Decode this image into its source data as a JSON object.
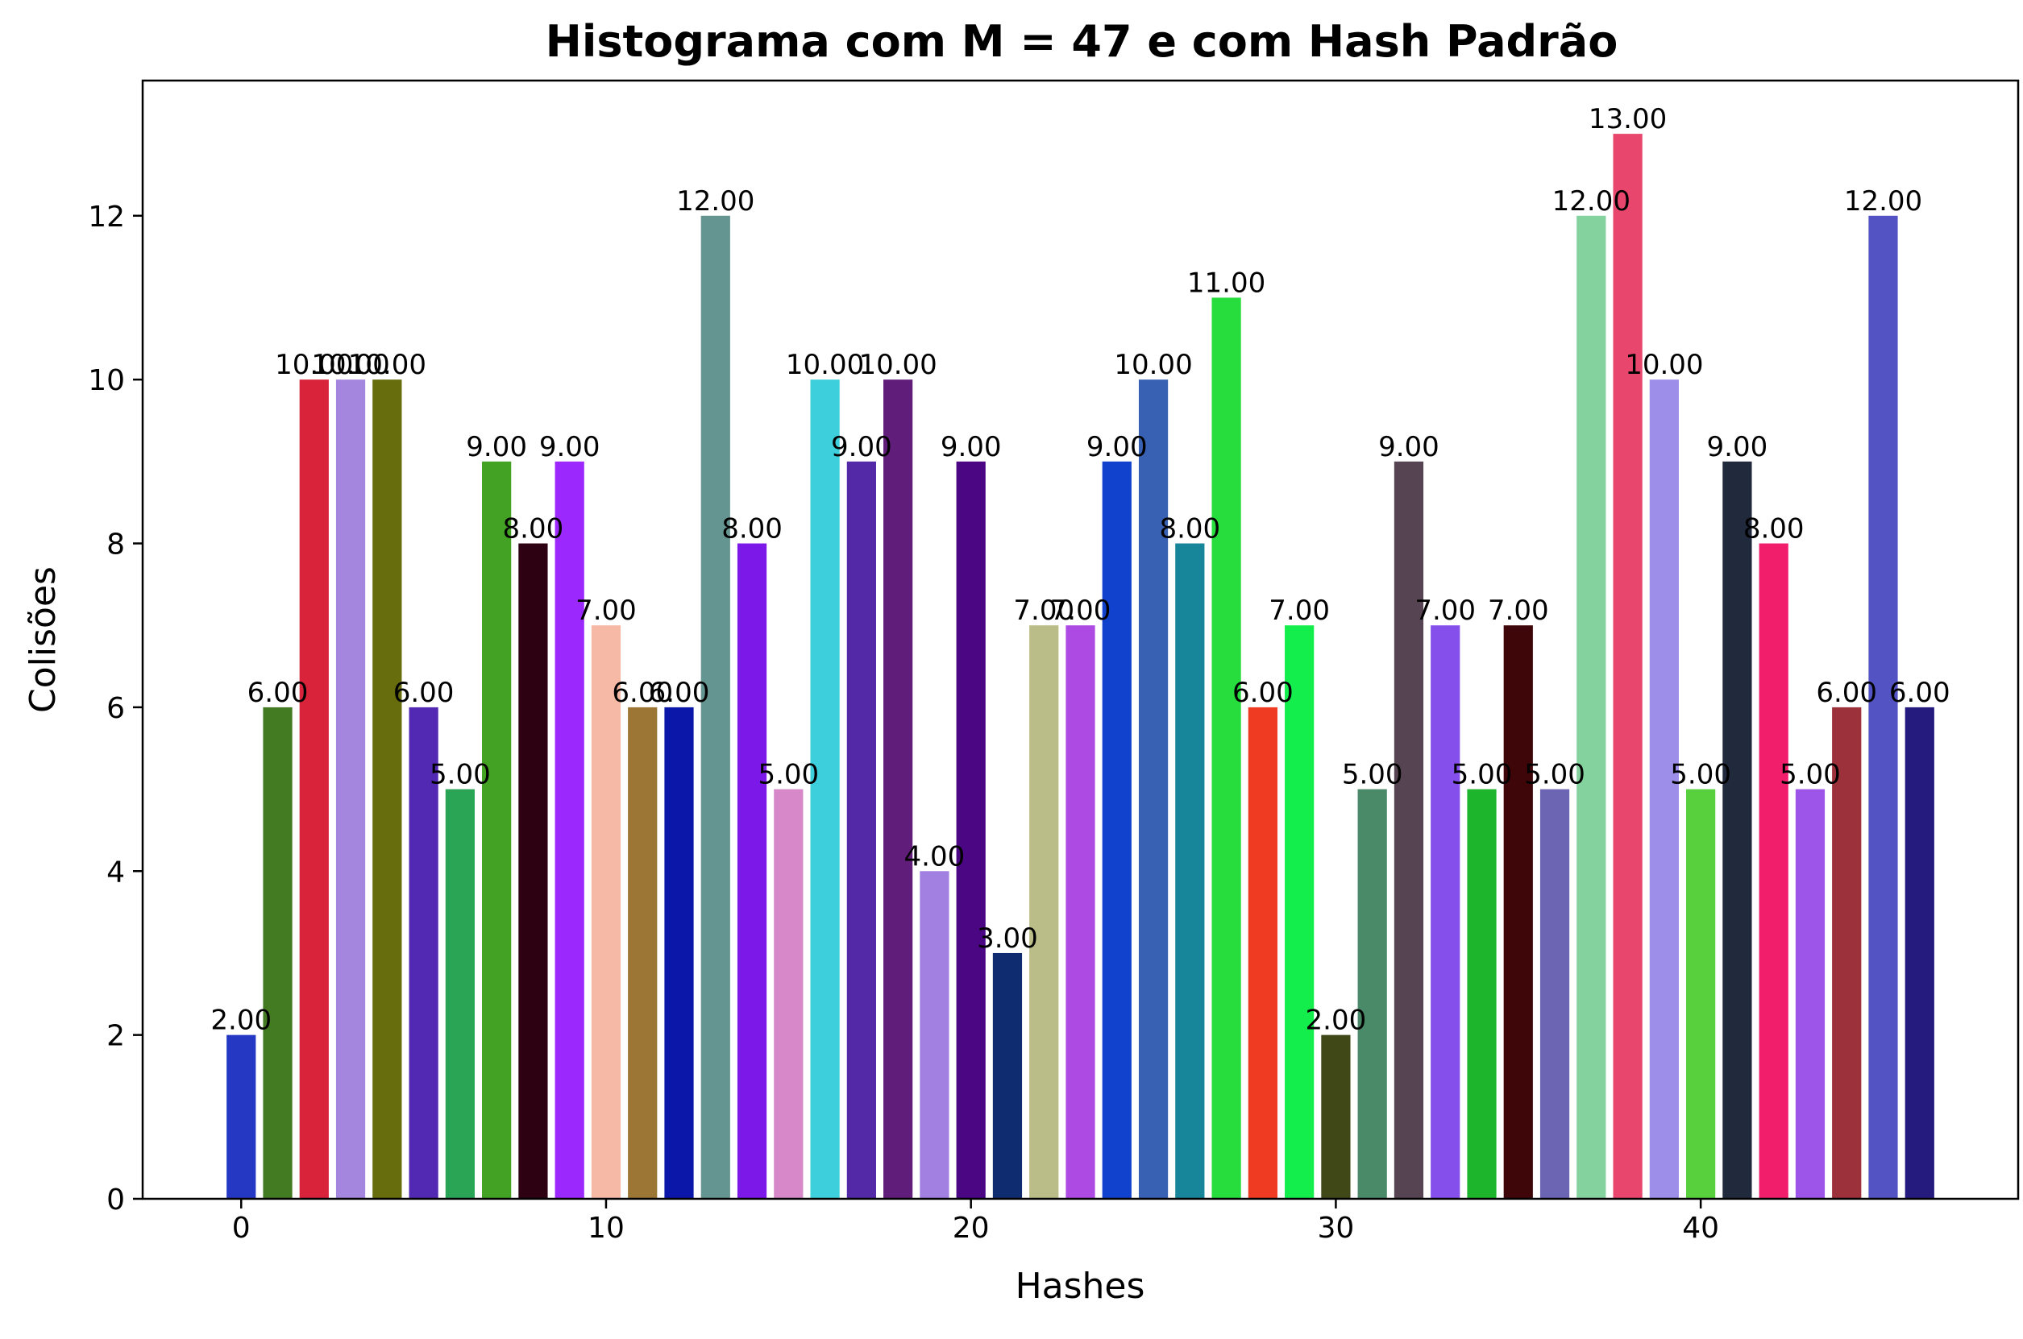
{
  "chart_data": {
    "type": "bar",
    "title": "Histograma com M = 47 e com Hash Padrão",
    "xlabel": "Hashes",
    "ylabel": "Colisões",
    "xlim": [
      -2.7,
      48.7
    ],
    "ylim": [
      0,
      13.65
    ],
    "xticks": [
      0,
      10,
      20,
      30,
      40
    ],
    "yticks": [
      0,
      2,
      4,
      6,
      8,
      10,
      12
    ],
    "grid": false,
    "x": [
      0,
      1,
      2,
      3,
      4,
      5,
      6,
      7,
      8,
      9,
      10,
      11,
      12,
      13,
      14,
      15,
      16,
      17,
      18,
      19,
      20,
      21,
      22,
      23,
      24,
      25,
      26,
      27,
      28,
      29,
      30,
      31,
      32,
      33,
      34,
      35,
      36,
      37,
      38,
      39,
      40,
      41,
      42,
      43,
      44,
      45,
      46
    ],
    "values": [
      2,
      6,
      10,
      10,
      10,
      6,
      5,
      9,
      8,
      9,
      7,
      6,
      6,
      12,
      8,
      5,
      10,
      9,
      10,
      4,
      9,
      3,
      7,
      7,
      9,
      10,
      8,
      11,
      6,
      7,
      2,
      5,
      9,
      7,
      5,
      7,
      5,
      12,
      13,
      10,
      5,
      9,
      8,
      5,
      6,
      12,
      6
    ],
    "value_labels": [
      "2.00",
      "6.00",
      "10.00",
      "10.00",
      "10.00",
      "6.00",
      "5.00",
      "9.00",
      "8.00",
      "9.00",
      "7.00",
      "6.00",
      "6.00",
      "12.00",
      "8.00",
      "5.00",
      "10.00",
      "9.00",
      "10.00",
      "4.00",
      "9.00",
      "3.00",
      "7.00",
      "7.00",
      "9.00",
      "10.00",
      "8.00",
      "11.00",
      "6.00",
      "7.00",
      "2.00",
      "5.00",
      "9.00",
      "7.00",
      "5.00",
      "7.00",
      "5.00",
      "12.00",
      "13.00",
      "10.00",
      "5.00",
      "9.00",
      "8.00",
      "5.00",
      "6.00",
      "12.00",
      "6.00"
    ],
    "colors": [
      "#2438c4",
      "#437b22",
      "#d8233b",
      "#a486de",
      "#676c0d",
      "#5129b3",
      "#2aa555",
      "#43a223",
      "#2d0012",
      "#9b29fd",
      "#f6b9a6",
      "#9b7634",
      "#0a17a9",
      "#659590",
      "#7c19e9",
      "#d688c9",
      "#3dcfdc",
      "#5329a7",
      "#601e7a",
      "#a280e1",
      "#4b0684",
      "#102c70",
      "#babd87",
      "#ad4ae3",
      "#1142cd",
      "#3861b3",
      "#17859a",
      "#26dd3d",
      "#ef3b22",
      "#14ee4d",
      "#404818",
      "#4b8a68",
      "#574452",
      "#844fea",
      "#1db52b",
      "#3e0608",
      "#6b65b4",
      "#84d29e",
      "#e8466c",
      "#9d8ee9",
      "#58d03e",
      "#212a3d",
      "#f01e6b",
      "#9c55e8",
      "#9c303b",
      "#5353c4",
      "#251a7d"
    ]
  }
}
